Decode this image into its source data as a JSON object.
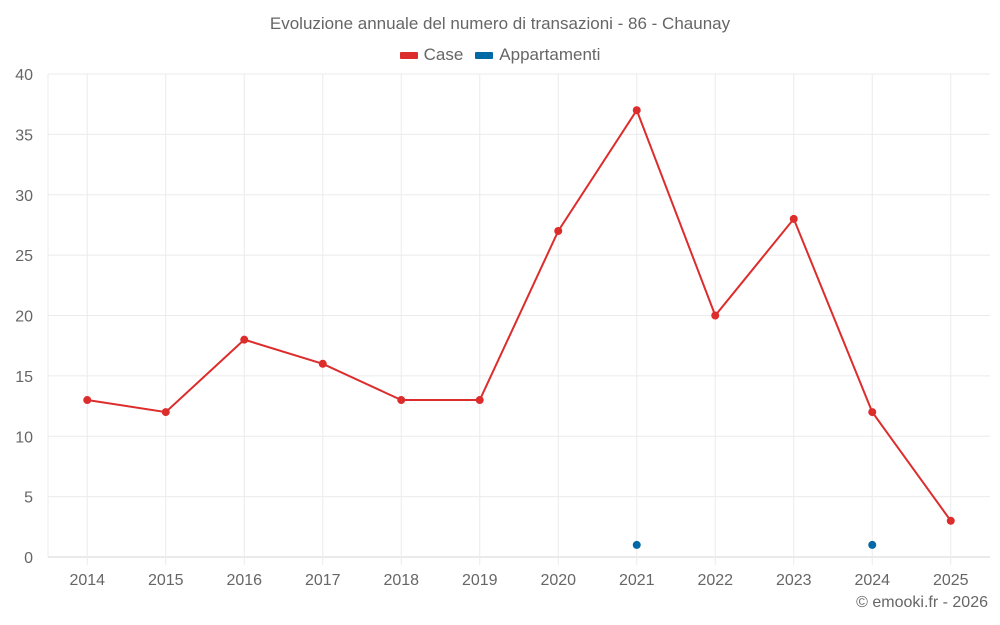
{
  "chart_data": {
    "type": "line",
    "title": "Evoluzione annuale del numero di transazioni - 86 - Chaunay",
    "xlabel": "",
    "ylabel": "",
    "categories": [
      "2014",
      "2015",
      "2016",
      "2017",
      "2018",
      "2019",
      "2020",
      "2021",
      "2022",
      "2023",
      "2024",
      "2025"
    ],
    "series": [
      {
        "name": "Case",
        "color": "#dd2c2c",
        "values": [
          13,
          12,
          18,
          16,
          13,
          13,
          27,
          37,
          20,
          28,
          12,
          3
        ]
      },
      {
        "name": "Appartamenti",
        "color": "#0069a6",
        "values": [
          null,
          null,
          null,
          null,
          null,
          null,
          null,
          1,
          null,
          null,
          1,
          null
        ]
      }
    ],
    "ylim": [
      0,
      40
    ],
    "yticks": [
      0,
      5,
      10,
      15,
      20,
      25,
      30,
      35,
      40
    ],
    "grid": true,
    "legend_position": "top"
  },
  "legend": {
    "items": [
      {
        "label": "Case",
        "color": "#dd2c2c"
      },
      {
        "label": "Appartamenti",
        "color": "#0069a6"
      }
    ]
  },
  "credit": "© emooki.fr - 2026"
}
